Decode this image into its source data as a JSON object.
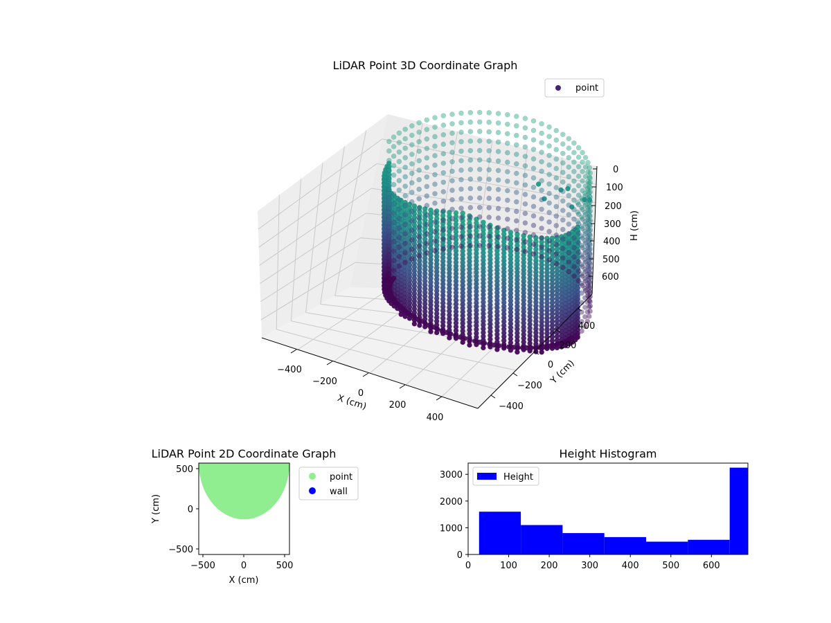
{
  "chart_data": [
    {
      "type": "scatter",
      "projection": "3d",
      "title": "LiDAR Point 3D Coordinate Graph",
      "xlabel": "X (cm)",
      "ylabel": "Y (cm)",
      "zlabel": "H (cm)",
      "x_ticks": [
        "−400",
        "−200",
        "0",
        "200",
        "400"
      ],
      "y_ticks": [
        "−400",
        "−200",
        "0",
        "200",
        "400"
      ],
      "z_ticks": [
        "0",
        "100",
        "200",
        "300",
        "400",
        "500",
        "600"
      ],
      "xlim": [
        -550,
        550
      ],
      "ylim": [
        -550,
        550
      ],
      "zlim": [
        0,
        700
      ],
      "zinverted": true,
      "legend": [
        "point"
      ],
      "legend_position": "top-right",
      "shape": "half-cylinder wall of points, radius about 520 cm, heights 0 to 650 cm, plus a few scattered interior points",
      "colors": {
        "low": "#440154",
        "mid": "#3b528b",
        "high": "#21918c",
        "top": "#22a884",
        "legend_marker": "#482173"
      }
    },
    {
      "type": "scatter",
      "title": "LiDAR Point 2D Coordinate Graph",
      "xlabel": "X (cm)",
      "ylabel": "Y (cm)",
      "x_ticks": [
        "−500",
        "0",
        "500"
      ],
      "y_ticks": [
        "−500",
        "0",
        "500"
      ],
      "xlim": [
        -560,
        560
      ],
      "ylim": [
        -560,
        560
      ],
      "series": [
        {
          "name": "point",
          "color": "#90ee90",
          "shape": "filled half-disc, flat edge at y=560, lowest y about -130"
        },
        {
          "name": "wall",
          "color": "#0000ff",
          "points": []
        }
      ]
    },
    {
      "type": "bar",
      "subtype": "histogram",
      "title": "Height Histogram",
      "xlabel": "",
      "ylabel": "",
      "x_ticks": [
        "0",
        "100",
        "200",
        "300",
        "400",
        "500",
        "600"
      ],
      "y_ticks": [
        "0",
        "1000",
        "2000",
        "3000"
      ],
      "xlim": [
        0,
        690
      ],
      "ylim": [
        0,
        3420
      ],
      "bin_edges": [
        27,
        130,
        233,
        336,
        439,
        542,
        645,
        690
      ],
      "values": [
        1600,
        1100,
        800,
        650,
        480,
        550,
        3250
      ],
      "legend": [
        "Height"
      ],
      "legend_position": "top-left",
      "color": "#0000ff"
    }
  ]
}
